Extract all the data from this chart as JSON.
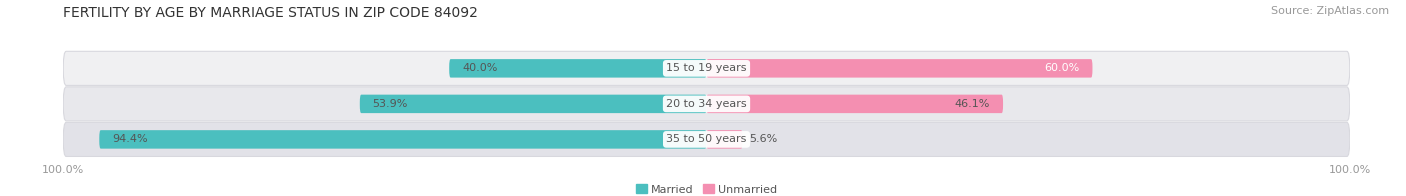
{
  "title": "FERTILITY BY AGE BY MARRIAGE STATUS IN ZIP CODE 84092",
  "source": "Source: ZipAtlas.com",
  "categories": [
    "15 to 19 years",
    "20 to 34 years",
    "35 to 50 years"
  ],
  "married_values": [
    40.0,
    53.9,
    94.4
  ],
  "unmarried_values": [
    60.0,
    46.1,
    5.6
  ],
  "married_color": "#4bbfbf",
  "unmarried_color": "#f48fb1",
  "row_bg_colors": [
    "#f0f0f2",
    "#e8e8ec",
    "#e2e2e8"
  ],
  "row_border_color": "#d8d8de",
  "label_color": "#555555",
  "title_color": "#333333",
  "source_color": "#999999",
  "axis_label_color": "#999999",
  "bar_height": 0.52,
  "title_fontsize": 10,
  "label_fontsize": 8,
  "source_fontsize": 8,
  "category_fontsize": 8,
  "axis_tick_fontsize": 8,
  "background_color": "#ffffff",
  "unmarried_label_color": "#ffffff",
  "married_label_60_color": "#ffffff"
}
